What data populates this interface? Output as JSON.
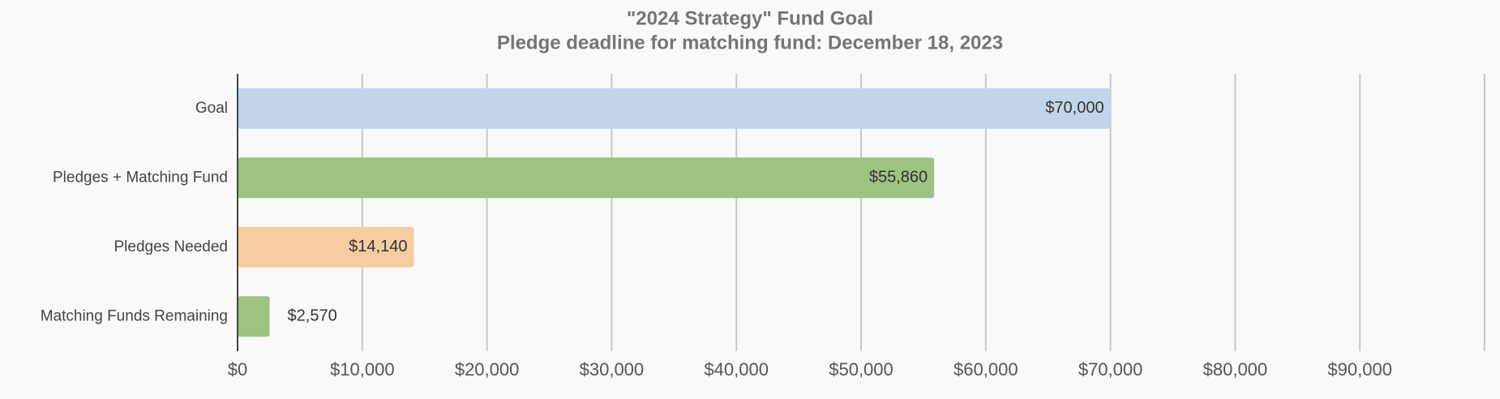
{
  "chart_data": {
    "type": "bar",
    "orientation": "horizontal",
    "title": "\"2024 Strategy\" Fund Goal",
    "subtitle": "Pledge deadline for matching fund: December 18, 2023",
    "categories": [
      "Goal",
      "Pledges + Matching Fund",
      "Pledges Needed",
      "Matching Funds Remaining"
    ],
    "values": [
      70000,
      55860,
      14140,
      2570
    ],
    "value_labels": [
      "$70,000",
      "$55,860",
      "$14,140",
      "$2,570"
    ],
    "colors": [
      "#c0d5ea",
      "#9dc383",
      "#f5cda0",
      "#9dc383"
    ],
    "xlim": [
      0,
      100000
    ],
    "xticks": [
      {
        "value": 0,
        "label": "$0"
      },
      {
        "value": 10000,
        "label": "$10,000"
      },
      {
        "value": 20000,
        "label": "$20,000"
      },
      {
        "value": 30000,
        "label": "$30,000"
      },
      {
        "value": 40000,
        "label": "$40,000"
      },
      {
        "value": 50000,
        "label": "$50,000"
      },
      {
        "value": 60000,
        "label": "$60,000"
      },
      {
        "value": 70000,
        "label": "$70,000"
      },
      {
        "value": 80000,
        "label": "$80,000"
      },
      {
        "value": 90000,
        "label": "$90,000"
      }
    ],
    "grid": true
  }
}
